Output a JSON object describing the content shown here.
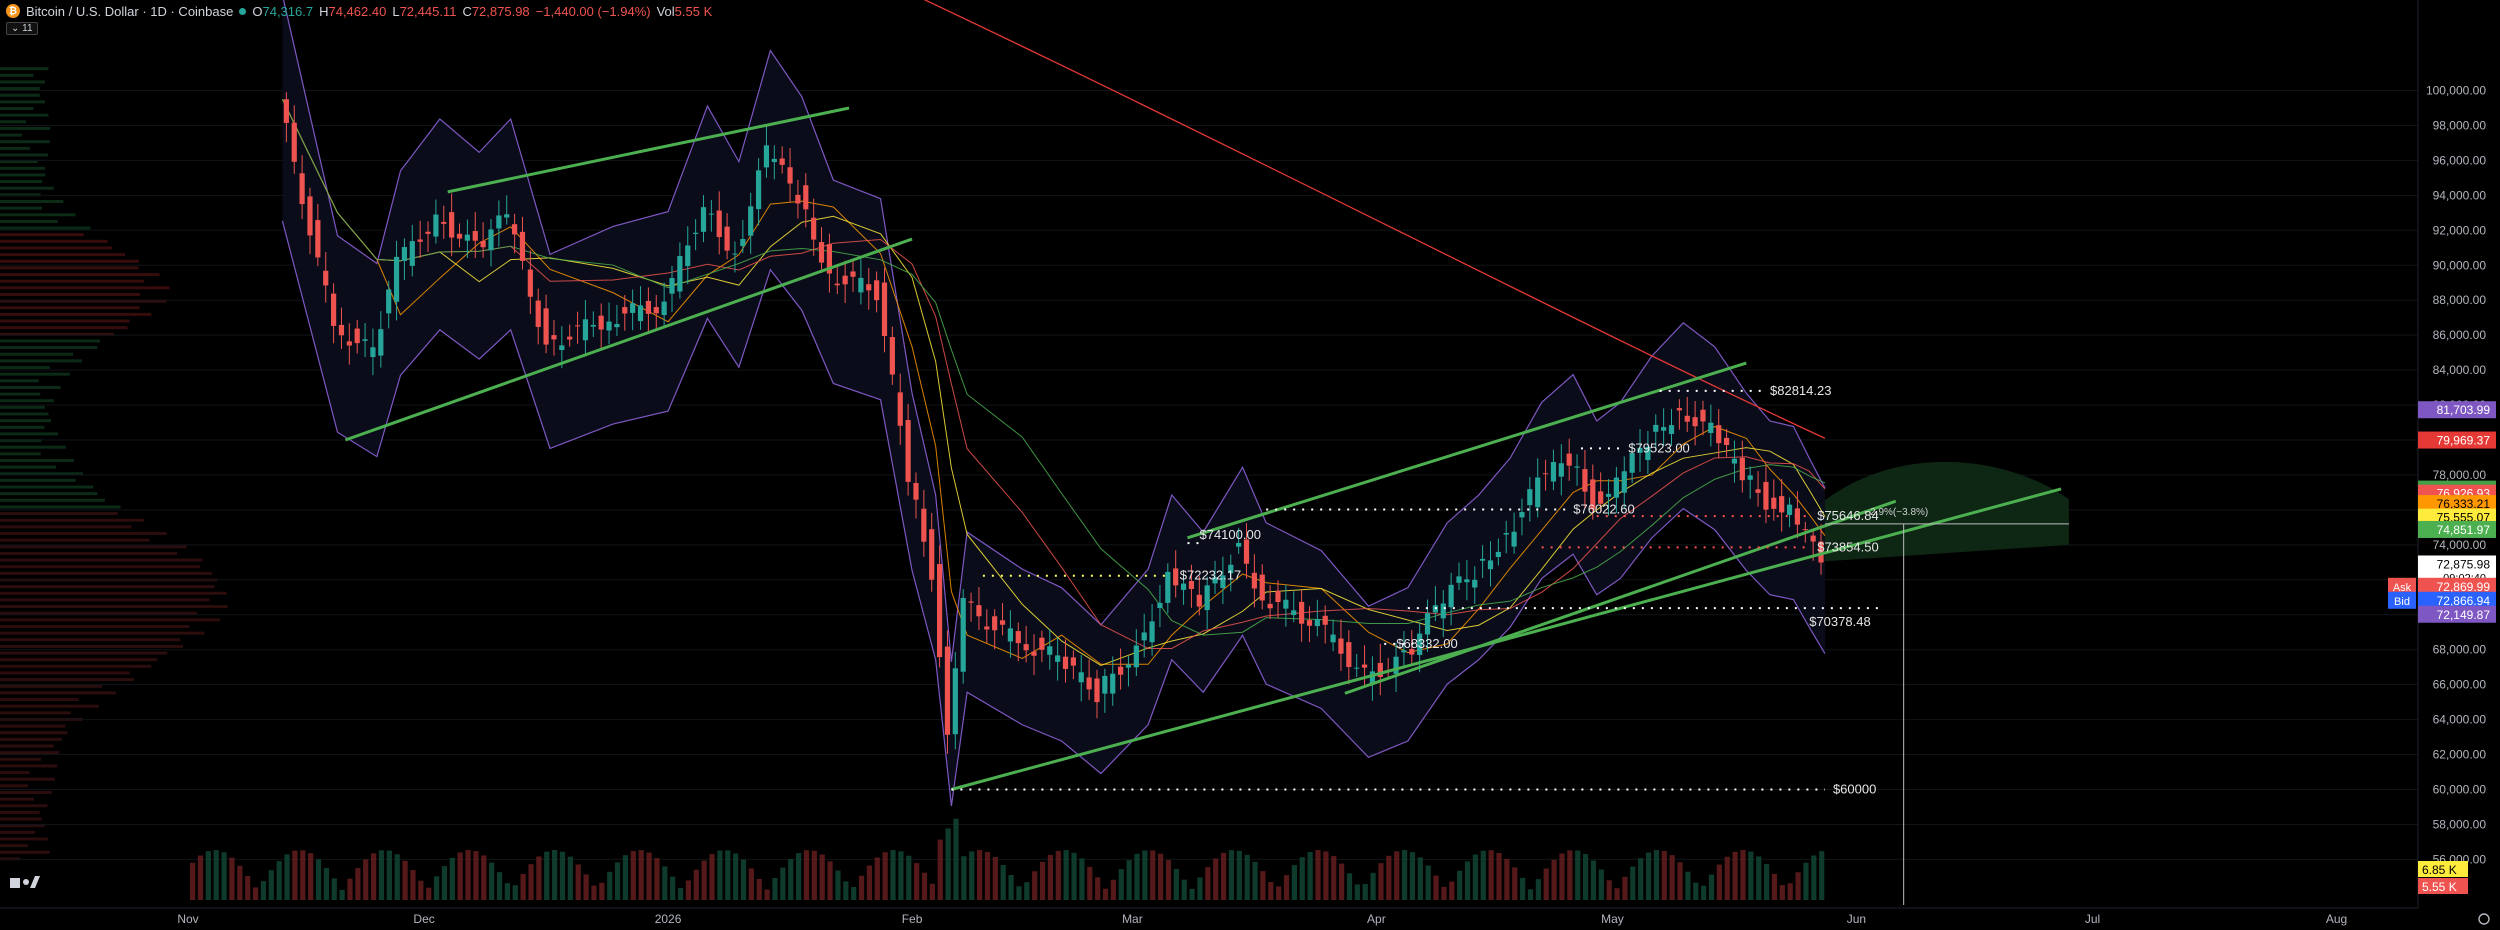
{
  "header": {
    "title": "Bitcoin / U.S. Dollar · 1D · Coinbase",
    "open_label": "O",
    "open": "74,316.7",
    "high_label": "H",
    "high": "74,462.40",
    "low_label": "L",
    "low": "72,445.11",
    "close_label": "C",
    "close": "72,875.98",
    "change": "−1,440.00 (−1.94%)",
    "vol_label": "Vol",
    "vol": "5.55 K",
    "indicators_count": "11"
  },
  "colors": {
    "up": "#26a69a",
    "down": "#ef5350",
    "trendline": "#4caf50",
    "bb": "#7e57c2",
    "ma200": "#e53935"
  },
  "chart_data": {
    "type": "candlestick",
    "symbol": "BTCUSD",
    "timeframe": "1D",
    "exchange": "Coinbase",
    "ylim": [
      54000,
      100000
    ],
    "y_ticks": [
      "56,000.00",
      "58,000.00",
      "60,000.00",
      "62,000.00",
      "64,000.00",
      "66,000.00",
      "68,000.00",
      "70,000.00",
      "72,000.00",
      "74,000.00",
      "76,000.00",
      "78,000.00",
      "80,000.00",
      "82,000.00",
      "84,000.00",
      "86,000.00",
      "88,000.00",
      "90,000.00",
      "92,000.00",
      "94,000.00",
      "96,000.00",
      "98,000.00",
      "100,000.00"
    ],
    "y_tick_values": [
      56000,
      58000,
      60000,
      62000,
      64000,
      66000,
      68000,
      70000,
      72000,
      74000,
      76000,
      78000,
      80000,
      82000,
      84000,
      86000,
      88000,
      90000,
      92000,
      94000,
      96000,
      98000,
      100000
    ],
    "x_ticks": [
      {
        "label": "Nov",
        "date": "2025-11-01"
      },
      {
        "label": "Dec",
        "date": "2025-12-01"
      },
      {
        "label": "2026",
        "date": "2026-01-01"
      },
      {
        "label": "Feb",
        "date": "2026-02-01"
      },
      {
        "label": "Mar",
        "date": "2026-03-01"
      },
      {
        "label": "Apr",
        "date": "2026-04-01"
      },
      {
        "label": "May",
        "date": "2026-05-01"
      },
      {
        "label": "Jun",
        "date": "2026-06-01"
      },
      {
        "label": "Jul",
        "date": "2026-07-01"
      },
      {
        "label": "Aug",
        "date": "2026-08-01"
      }
    ],
    "price_path": [
      {
        "date": "2025-11-13",
        "price": 99500
      },
      {
        "date": "2025-11-20",
        "price": 86500
      },
      {
        "date": "2025-11-25",
        "price": 85000
      },
      {
        "date": "2025-11-28",
        "price": 90000
      },
      {
        "date": "2025-12-03",
        "price": 92800
      },
      {
        "date": "2025-12-08",
        "price": 91000
      },
      {
        "date": "2025-12-12",
        "price": 92800
      },
      {
        "date": "2025-12-17",
        "price": 85500
      },
      {
        "date": "2025-12-25",
        "price": 87000
      },
      {
        "date": "2026-01-01",
        "price": 87800
      },
      {
        "date": "2026-01-06",
        "price": 93500
      },
      {
        "date": "2026-01-10",
        "price": 90500
      },
      {
        "date": "2026-01-14",
        "price": 96500
      },
      {
        "date": "2026-01-18",
        "price": 94000
      },
      {
        "date": "2026-01-22",
        "price": 89500
      },
      {
        "date": "2026-01-28",
        "price": 88500
      },
      {
        "date": "2026-02-01",
        "price": 78000
      },
      {
        "date": "2026-02-04",
        "price": 72500
      },
      {
        "date": "2026-02-06",
        "price": 63500
      },
      {
        "date": "2026-02-08",
        "price": 70500
      },
      {
        "date": "2026-02-15",
        "price": 68500
      },
      {
        "date": "2026-02-20",
        "price": 67500
      },
      {
        "date": "2026-02-25",
        "price": 65500
      },
      {
        "date": "2026-03-03",
        "price": 68500
      },
      {
        "date": "2026-03-06",
        "price": 72500
      },
      {
        "date": "2026-03-10",
        "price": 70500
      },
      {
        "date": "2026-03-15",
        "price": 74000
      },
      {
        "date": "2026-03-18",
        "price": 71000
      },
      {
        "date": "2026-03-25",
        "price": 69500
      },
      {
        "date": "2026-03-31",
        "price": 66500
      },
      {
        "date": "2026-04-05",
        "price": 67500
      },
      {
        "date": "2026-04-10",
        "price": 71000
      },
      {
        "date": "2026-04-14",
        "price": 72500
      },
      {
        "date": "2026-04-18",
        "price": 74500
      },
      {
        "date": "2026-04-22",
        "price": 77500
      },
      {
        "date": "2026-04-26",
        "price": 79000
      },
      {
        "date": "2026-04-29",
        "price": 76500
      },
      {
        "date": "2026-05-02",
        "price": 77500
      },
      {
        "date": "2026-05-06",
        "price": 80000
      },
      {
        "date": "2026-05-10",
        "price": 81800
      },
      {
        "date": "2026-05-14",
        "price": 80500
      },
      {
        "date": "2026-05-18",
        "price": 78000
      },
      {
        "date": "2026-05-21",
        "price": 76500
      },
      {
        "date": "2026-05-24",
        "price": 76200
      },
      {
        "date": "2026-05-26",
        "price": 74500
      },
      {
        "date": "2026-05-28",
        "price": 72876
      }
    ],
    "trendlines": [
      {
        "name": "upper-channel-dec",
        "from": {
          "date": "2025-12-04",
          "price": 94200
        },
        "to": {
          "date": "2026-01-24",
          "price": 99000
        }
      },
      {
        "name": "lower-channel-dec",
        "from": {
          "date": "2025-11-21",
          "price": 80000
        },
        "to": {
          "date": "2026-02-01",
          "price": 91500
        }
      },
      {
        "name": "upper-channel-mar",
        "from": {
          "date": "2026-03-08",
          "price": 74400
        },
        "to": {
          "date": "2026-05-18",
          "price": 84400
        }
      },
      {
        "name": "mid-channel-mar",
        "from": {
          "date": "2026-03-28",
          "price": 65500
        },
        "to": {
          "date": "2026-06-06",
          "price": 76500
        }
      },
      {
        "name": "lower-support",
        "from": {
          "date": "2026-02-06",
          "price": 60000
        },
        "to": {
          "date": "2026-06-27",
          "price": 77200
        }
      }
    ],
    "levels": [
      {
        "label": "$82814.23",
        "price": 82814,
        "from": "2026-05-07",
        "to": "2026-05-20",
        "color": "#ffffff"
      },
      {
        "label": "$79523.00",
        "price": 79523,
        "from": "2026-04-27",
        "to": "2026-05-02",
        "color": "#ffffff"
      },
      {
        "label": "$76022.60",
        "price": 76022,
        "from": "2026-03-18",
        "to": "2026-04-25",
        "color": "#ffffff"
      },
      {
        "label": "$75646.84",
        "price": 75646,
        "from": "2026-04-29",
        "to": "2026-05-26",
        "color": "#ff5252"
      },
      {
        "label": "$74100.00",
        "price": 74100,
        "from": "2026-03-08",
        "to": "2026-03-10",
        "color": "#ffffff"
      },
      {
        "label": "$73854.50",
        "price": 73854,
        "from": "2026-04-22",
        "to": "2026-05-26",
        "color": "#ff5252"
      },
      {
        "label": "$72232.17",
        "price": 72232,
        "from": "2026-02-10",
        "to": "2026-03-06",
        "color": "#ffff66"
      },
      {
        "label": "$68332.00",
        "price": 68332,
        "from": "2026-04-02",
        "to": "2026-04-06",
        "color": "#ffffff"
      },
      {
        "label": "$70378.48",
        "price": 70378,
        "from": "2026-04-05",
        "to": "2026-06-04",
        "color": "#ffffff"
      },
      {
        "label": "$60000",
        "price": 60000,
        "from": "2026-02-06",
        "to": "2026-05-28",
        "color": "#ffffff"
      }
    ],
    "overlay_note": "−2.9%(−3.8%)",
    "price_labels": [
      {
        "text": "81,703.99",
        "price": 81704,
        "bg": "#7e57c2",
        "fg": "#ffffff"
      },
      {
        "text": "79,969.37",
        "price": 79969,
        "bg": "#e53935",
        "fg": "#ffffff"
      },
      {
        "text": "77,161.94",
        "price": 77162,
        "bg": "#43a047",
        "fg": "#ffffff"
      },
      {
        "text": "76,926.93",
        "price": 76927,
        "bg": "#ef5350",
        "fg": "#ffffff"
      },
      {
        "text": "76,333.21",
        "price": 76333,
        "bg": "#ff9800",
        "fg": "#000000"
      },
      {
        "text": "75,555.07",
        "price": 75555,
        "bg": "#ffeb3b",
        "fg": "#000000"
      },
      {
        "text": "74,851.97",
        "price": 74852,
        "bg": "#4caf50",
        "fg": "#ffffff"
      },
      {
        "text": "72,875.98",
        "price": 72876,
        "bg": "#ffffff",
        "fg": "#000000",
        "sub": "09:02:40"
      },
      {
        "text": "72,869.99",
        "price": 71600,
        "bg": "#ef5350",
        "fg": "#ffffff",
        "tag": "Ask"
      },
      {
        "text": "72,866.94",
        "price": 70800,
        "bg": "#2962ff",
        "fg": "#ffffff",
        "tag": "Bid"
      },
      {
        "text": "72,149.87",
        "price": 70000,
        "bg": "#7e57c2",
        "fg": "#ffffff"
      }
    ],
    "volume_labels": [
      {
        "text": "6.85 K",
        "bg": "#ffeb3b",
        "fg": "#000000"
      },
      {
        "text": "5.55 K",
        "bg": "#ef5350",
        "fg": "#ffffff"
      }
    ]
  }
}
